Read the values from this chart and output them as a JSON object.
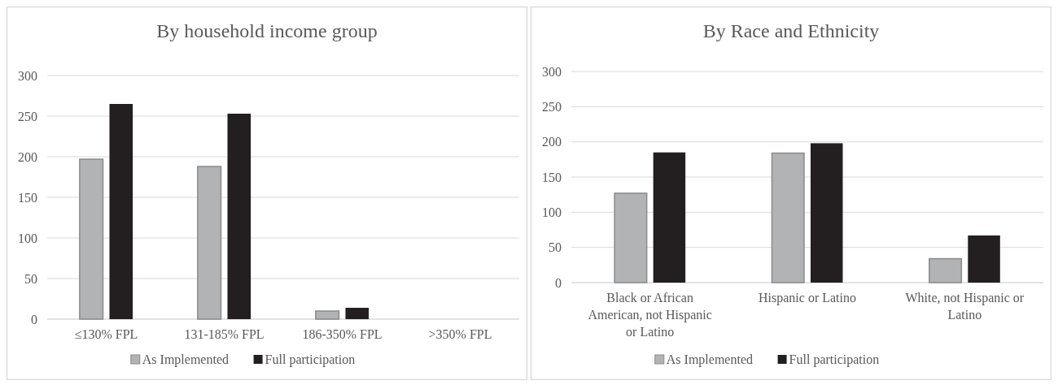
{
  "chart_data": [
    {
      "type": "bar",
      "title": "By household income group",
      "categories": [
        "≤130% FPL",
        "131-185% FPL",
        "186-350% FPL",
        ">350% FPL"
      ],
      "series": [
        {
          "name": "As Implemented",
          "color": "#b2b3b5",
          "values": [
            197,
            188,
            10,
            0
          ]
        },
        {
          "name": "Full participation",
          "color": "#231f20",
          "values": [
            265,
            253,
            14,
            0
          ]
        }
      ],
      "ylim": [
        0,
        300
      ],
      "yticks": [
        0,
        50,
        100,
        150,
        200,
        250,
        300
      ],
      "grid": "y",
      "legend": "bottom"
    },
    {
      "type": "bar",
      "title": "By Race and Ethnicity",
      "categories": [
        "Black or African American, not Hispanic or Latino",
        "Hispanic or Latino",
        "White, not Hispanic or Latino"
      ],
      "series": [
        {
          "name": "As Implemented",
          "color": "#b2b3b5",
          "values": [
            127,
            184,
            34
          ]
        },
        {
          "name": "Full participation",
          "color": "#231f20",
          "values": [
            185,
            198,
            67
          ]
        }
      ],
      "ylim": [
        0,
        300
      ],
      "yticks": [
        0,
        50,
        100,
        150,
        200,
        250,
        300
      ],
      "grid": "y",
      "legend": "bottom"
    }
  ]
}
